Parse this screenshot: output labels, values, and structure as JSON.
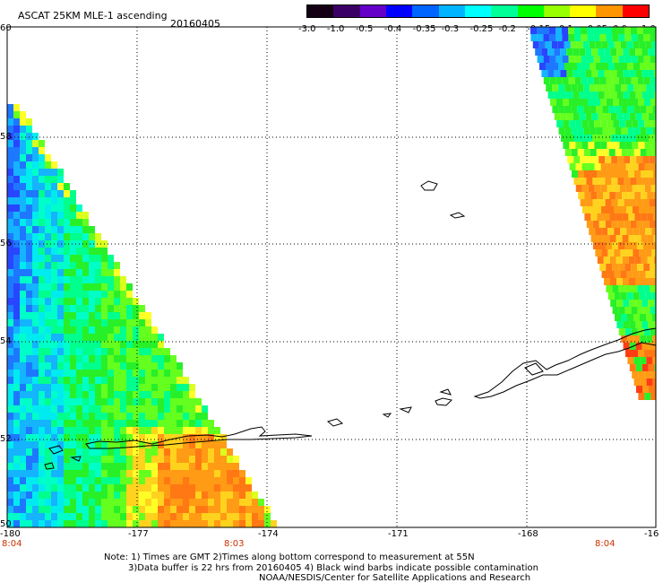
{
  "header": {
    "product": "ASCAT 25KM MLE-1 ascending",
    "date": "20160405"
  },
  "colorbar": {
    "labels": [
      "-3.0",
      "-1.0",
      "-0.5",
      "-0.4",
      "-0.35",
      "-0.3",
      "-0.25",
      "-0.2",
      "-0.15",
      "-0.1",
      "-0.05",
      "0.0",
      "1.0"
    ],
    "colors": [
      "#140014",
      "#3a0066",
      "#6400c8",
      "#0000ff",
      "#0064ff",
      "#00b4ff",
      "#00ffff",
      "#00ff96",
      "#00ff00",
      "#96ff00",
      "#ffff00",
      "#ff9600",
      "#ff0000"
    ]
  },
  "axes": {
    "lon_labels": [
      "-180",
      "-177",
      "-174",
      "-171",
      "-168",
      "-16"
    ],
    "lat_labels": [
      "60",
      "58",
      "56",
      "54",
      "52",
      "50"
    ]
  },
  "times": [
    "8:04",
    "8:03",
    "8:04"
  ],
  "notes": {
    "line1": "Note: 1) Times are GMT 2)Times along bottom correspond to measurement at 55N",
    "line2": "3)Data buffer is 22 hrs from 20160405 4) Black wind barbs indicate possible contamination",
    "line3": "NOAA/NESDIS/Center for Satellite Applications and Research"
  }
}
